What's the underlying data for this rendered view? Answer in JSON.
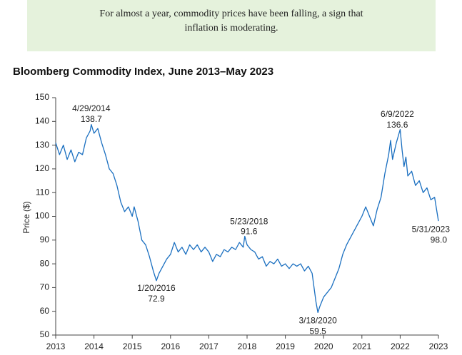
{
  "callout": [
    "For almost a year, commodity prices have been falling, a sign that",
    "inflation is moderating."
  ],
  "chart_data": {
    "type": "line",
    "title": "Bloomberg Commodity Index, June 2013–May 2023",
    "y_label": "Price ($)",
    "color": "#1a6fc0",
    "x": [
      2013.0,
      2013.1,
      2013.2,
      2013.3,
      2013.4,
      2013.5,
      2013.6,
      2013.7,
      2013.8,
      2013.9,
      2013.93,
      2014.0,
      2014.1,
      2014.2,
      2014.3,
      2014.4,
      2014.5,
      2014.6,
      2014.7,
      2014.8,
      2014.9,
      2015.0,
      2015.05,
      2015.15,
      2015.25,
      2015.35,
      2015.45,
      2015.55,
      2015.63,
      2015.7,
      2015.8,
      2015.9,
      2016.0,
      2016.1,
      2016.2,
      2016.3,
      2016.4,
      2016.5,
      2016.6,
      2016.7,
      2016.8,
      2016.9,
      2017.0,
      2017.1,
      2017.2,
      2017.3,
      2017.4,
      2017.5,
      2017.6,
      2017.7,
      2017.8,
      2017.9,
      2017.94,
      2018.0,
      2018.1,
      2018.2,
      2018.3,
      2018.4,
      2018.5,
      2018.6,
      2018.7,
      2018.8,
      2018.9,
      2019.0,
      2019.1,
      2019.2,
      2019.3,
      2019.4,
      2019.5,
      2019.6,
      2019.7,
      2019.75,
      2019.8,
      2019.85,
      2019.9,
      2020.0,
      2020.1,
      2020.2,
      2020.3,
      2020.4,
      2020.5,
      2020.6,
      2020.7,
      2020.8,
      2020.9,
      2021.0,
      2021.1,
      2021.2,
      2021.3,
      2021.4,
      2021.5,
      2021.6,
      2021.7,
      2021.75,
      2021.8,
      2021.9,
      2022.0,
      2022.05,
      2022.1,
      2022.15,
      2022.2,
      2022.3,
      2022.4,
      2022.5,
      2022.6,
      2022.7,
      2022.8,
      2022.9,
      2022.95,
      2023.0
    ],
    "values": [
      131,
      126,
      130,
      124,
      128,
      123,
      127,
      126,
      133,
      136,
      138.7,
      135,
      137,
      131,
      126,
      120,
      118,
      113,
      106,
      102,
      104,
      100,
      104,
      98,
      90,
      88,
      83,
      77,
      72.9,
      76,
      79,
      82,
      84,
      89,
      85,
      87,
      84,
      88,
      86,
      88,
      85,
      87,
      85,
      81,
      84,
      83,
      86,
      85,
      87,
      86,
      89,
      87,
      91.6,
      88,
      86,
      85,
      82,
      83,
      79,
      81,
      80,
      82,
      79,
      80,
      78,
      80,
      79,
      80,
      77,
      79,
      76,
      70,
      64,
      59.5,
      62,
      66,
      68,
      70,
      74,
      78,
      84,
      88,
      91,
      94,
      97,
      100,
      104,
      100,
      96,
      103,
      108,
      118,
      126,
      132,
      124,
      131,
      136.6,
      128,
      121,
      125,
      117,
      119,
      113,
      115,
      110,
      112,
      107,
      108,
      103,
      98
    ],
    "xlim": [
      2013,
      2023
    ],
    "xticks": [
      2013,
      2014,
      2015,
      2016,
      2017,
      2018,
      2019,
      2020,
      2021,
      2022,
      2023
    ],
    "ylim": [
      50,
      150
    ],
    "yticks": [
      50,
      60,
      70,
      80,
      90,
      100,
      110,
      120,
      130,
      140,
      150
    ],
    "annotations": [
      {
        "text": "4/29/2014",
        "x": 2013.93,
        "value": 138.7
      },
      {
        "text": "1/20/2016",
        "x": 2015.63,
        "value": 72.9
      },
      {
        "text": "5/23/2018",
        "x": 2017.94,
        "value": 91.6
      },
      {
        "text": "3/18/2020",
        "x": 2019.85,
        "value": 59.5
      },
      {
        "text": "6/9/2022",
        "x": 2022.0,
        "value": 136.6
      },
      {
        "text": "5/31/2023",
        "x": 2023.0,
        "value": 98,
        "value_label": "98.0"
      }
    ]
  }
}
